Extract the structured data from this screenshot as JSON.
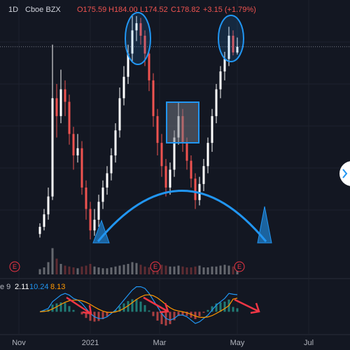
{
  "chart_data": {
    "type": "candlestick",
    "header": {
      "interval": "1D",
      "exchange": "Cboe BZX",
      "ohlc_labels": [
        "O175.59",
        "H184.00",
        "L174.52",
        "C178.82"
      ],
      "change": "+3.15 (+1.79%)"
    },
    "up_color": "#ffffff",
    "down_color": "#ef5350",
    "x": [
      9,
      10,
      11,
      12,
      13,
      14,
      15,
      16,
      17,
      18,
      19,
      20,
      21,
      22,
      23,
      24,
      25,
      26,
      27,
      28,
      29,
      30,
      31,
      32,
      33,
      34,
      35,
      36,
      37,
      38,
      39,
      40,
      41,
      42,
      43,
      44,
      45,
      46,
      47,
      48,
      49,
      50,
      51,
      52,
      53,
      54,
      55,
      56
    ],
    "open": [
      74,
      78,
      85,
      95,
      150,
      140,
      155,
      148,
      130,
      118,
      122,
      100,
      88,
      76,
      82,
      92,
      100,
      108,
      118,
      132,
      150,
      162,
      175,
      188,
      192,
      185,
      175,
      160,
      140,
      125,
      112,
      100,
      110,
      128,
      140,
      125,
      115,
      105,
      93,
      102,
      112,
      125,
      140,
      155,
      165,
      172,
      185,
      175.59
    ],
    "high": [
      80,
      88,
      100,
      180,
      158,
      166,
      160,
      152,
      134,
      130,
      126,
      104,
      92,
      88,
      96,
      104,
      112,
      122,
      136,
      156,
      168,
      180,
      197,
      196,
      195,
      188,
      178,
      164,
      144,
      130,
      116,
      114,
      132,
      148,
      144,
      128,
      118,
      108,
      106,
      116,
      128,
      144,
      158,
      168,
      176,
      190,
      188,
      184
    ],
    "low": [
      72,
      76,
      82,
      93,
      128,
      136,
      140,
      124,
      110,
      114,
      96,
      82,
      71,
      73,
      78,
      88,
      96,
      104,
      114,
      128,
      146,
      158,
      170,
      182,
      180,
      168,
      154,
      134,
      118,
      106,
      95,
      96,
      106,
      124,
      120,
      110,
      100,
      88,
      90,
      98,
      108,
      120,
      136,
      150,
      160,
      168,
      174,
      174.52
    ],
    "close": [
      78,
      85,
      95,
      150,
      140,
      155,
      148,
      130,
      118,
      122,
      100,
      88,
      76,
      82,
      92,
      100,
      108,
      118,
      132,
      150,
      162,
      175,
      188,
      192,
      185,
      175,
      160,
      140,
      125,
      112,
      100,
      110,
      128,
      140,
      125,
      115,
      105,
      93,
      102,
      112,
      125,
      140,
      155,
      165,
      172,
      185,
      175.67,
      178.82
    ],
    "volume": [
      6,
      8,
      14,
      30,
      18,
      12,
      10,
      9,
      8,
      7,
      9,
      10,
      12,
      9,
      8,
      7,
      7,
      8,
      9,
      10,
      11,
      12,
      14,
      13,
      11,
      9,
      8,
      9,
      10,
      11,
      10,
      9,
      9,
      10,
      9,
      8,
      8,
      9,
      10,
      8,
      8,
      9,
      9,
      10,
      11,
      10,
      9,
      7
    ],
    "volume_lim": [
      0,
      40
    ],
    "xlim": [
      -0.5,
      82.83
    ],
    "ylim": [
      60,
      205
    ],
    "xticks": [
      {
        "value": 4,
        "label": "Nov"
      },
      {
        "value": 21,
        "label": "2021"
      },
      {
        "value": 37.5,
        "label": "Mar"
      },
      {
        "value": 56,
        "label": "May"
      },
      {
        "value": 73,
        "label": "Jul"
      }
    ],
    "events": [
      {
        "x": 3,
        "label": "E"
      },
      {
        "x": 36.5,
        "label": "E"
      },
      {
        "x": 56.5,
        "label": "E"
      }
    ],
    "macd": {
      "label": "e 9",
      "ylim": [
        -12,
        14
      ],
      "macd_color": "#2196f3",
      "signal_color": "#ff9800",
      "macd": [
        0,
        1,
        2,
        6,
        8,
        10,
        11,
        10,
        8,
        7,
        5,
        2,
        -1,
        -3,
        -4,
        -4,
        -3,
        -1,
        1,
        4,
        7,
        10,
        13,
        15,
        15,
        14,
        11,
        7,
        3,
        -1,
        -4,
        -5,
        -4,
        -2,
        -2,
        -3,
        -5,
        -7,
        -6,
        -4,
        -2,
        1,
        4,
        6,
        8,
        11,
        10.5,
        10.24
      ],
      "signal": [
        0,
        0.2,
        0.6,
        1.7,
        3,
        4.4,
        5.7,
        6.6,
        6.9,
        7,
        6.6,
        5.7,
        4.4,
        2.9,
        1.5,
        0.4,
        -0.3,
        -0.4,
        -0.1,
        0.7,
        2,
        3.6,
        5.5,
        7.4,
        8.9,
        10,
        10.2,
        9.6,
        8.3,
        6.4,
        4.3,
        2.4,
        1.1,
        0.5,
        0,
        -0.6,
        -1.5,
        -2.6,
        -3.3,
        -3.4,
        -3.1,
        -2.3,
        -1,
        0.4,
        1.9,
        3.7,
        7.6,
        8.13
      ],
      "histogram": [
        0,
        0.8,
        1.4,
        4.3,
        5,
        5.6,
        5.3,
        3.4,
        1.1,
        0,
        -1.6,
        -3.7,
        -5.4,
        -5.9,
        -5.5,
        -4.4,
        -2.7,
        -0.6,
        1.1,
        3.3,
        5,
        6.4,
        7.5,
        7.6,
        6.1,
        4,
        0.8,
        -2.6,
        -5.3,
        -7.4,
        -8.3,
        -7.4,
        -5.1,
        -2.5,
        -2,
        -2.4,
        -3.5,
        -4.4,
        -2.7,
        -0.6,
        1.1,
        3.3,
        5,
        5.6,
        6.1,
        7.3,
        2.9,
        2.11
      ]
    }
  }
}
